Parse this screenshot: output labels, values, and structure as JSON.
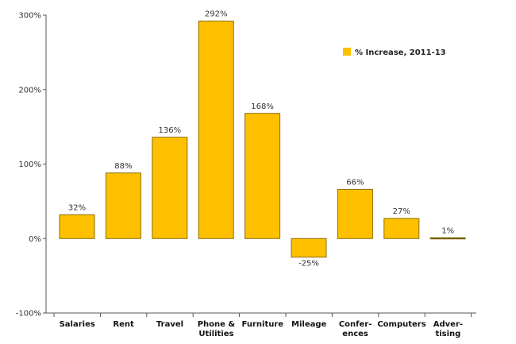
{
  "chart_data": {
    "type": "bar",
    "categories": [
      [
        "Salaries"
      ],
      [
        "Rent"
      ],
      [
        "Travel"
      ],
      [
        "Phone &",
        "Utilities"
      ],
      [
        "Furniture"
      ],
      [
        "Mileage"
      ],
      [
        "Confer-",
        "ences"
      ],
      [
        "Computers"
      ],
      [
        "Adver-",
        "tising"
      ]
    ],
    "series": [
      {
        "name": "% Increase, 2011-13",
        "values": [
          32,
          88,
          136,
          292,
          168,
          -25,
          66,
          27,
          1
        ],
        "color": "#FFC000"
      }
    ],
    "data_labels": [
      "32%",
      "88%",
      "136%",
      "292%",
      "168%",
      "-25%",
      "66%",
      "27%",
      "1%"
    ],
    "y_ticks": [
      -100,
      0,
      100,
      200,
      300
    ],
    "y_tick_labels": [
      "-100%",
      "0%",
      "100%",
      "200%",
      "300%"
    ],
    "ylim": [
      -100,
      300
    ],
    "grid": false,
    "legend_position": "top-right",
    "bar_stroke_color": "#8a6d00",
    "axis_color": "#555555"
  }
}
